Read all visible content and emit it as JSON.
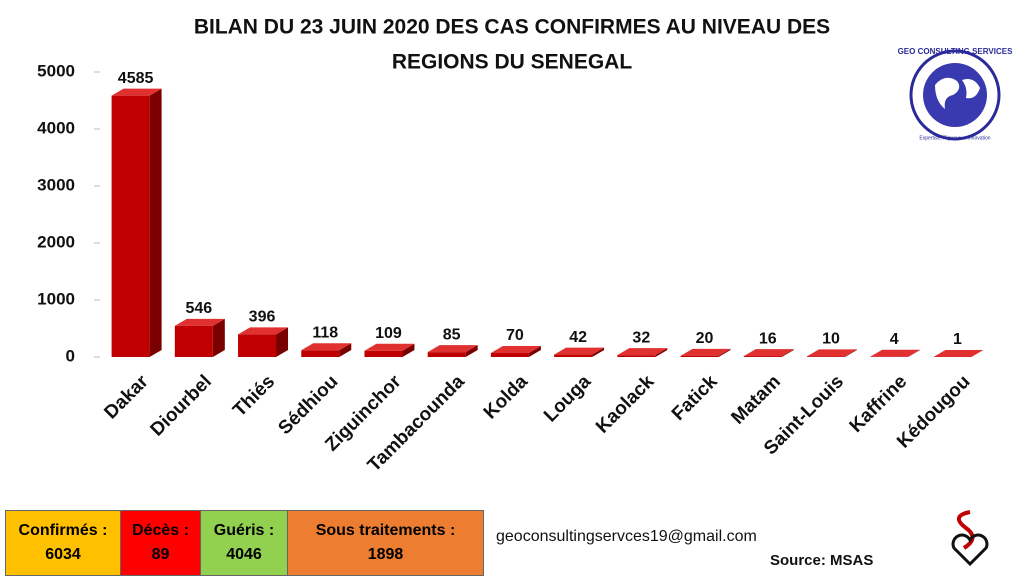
{
  "chart_data": {
    "type": "bar3d",
    "title": [
      "BILAN DU 23 JUIN 2020 DES CAS CONFIRMES AU NIVEAU DES",
      "REGIONS  DU SENEGAL"
    ],
    "categories": [
      "Dakar",
      "Diourbel",
      "Thiés",
      "Sédhiou",
      "Ziguinchor",
      "Tambacounda",
      "Kolda",
      "Louga",
      "Kaolack",
      "Fatick",
      "Matam",
      "Saint-Louis",
      "Kaffrine",
      "Kédougou"
    ],
    "values": [
      4585,
      546,
      396,
      118,
      109,
      85,
      70,
      42,
      32,
      20,
      16,
      10,
      4,
      1
    ],
    "color": "#c00000",
    "ylim": [
      0,
      5000
    ],
    "yticks": [
      0,
      1000,
      2000,
      3000,
      4000,
      5000
    ],
    "grid": false
  },
  "summary": [
    {
      "label": "Confirmés :",
      "value": 6034
    },
    {
      "label": "Décès :",
      "value": 89
    },
    {
      "label": "Guéris :",
      "value": 4046
    },
    {
      "label": "Sous traitements :",
      "value": 1898
    }
  ],
  "footer": {
    "email": "geoconsultingservces19@gmail.com",
    "source": "Source:  MSAS"
  },
  "logo": {
    "name": "GEO CONSULTING SERVICES",
    "tagline": "Expertise, Rigueur et Innovation"
  }
}
